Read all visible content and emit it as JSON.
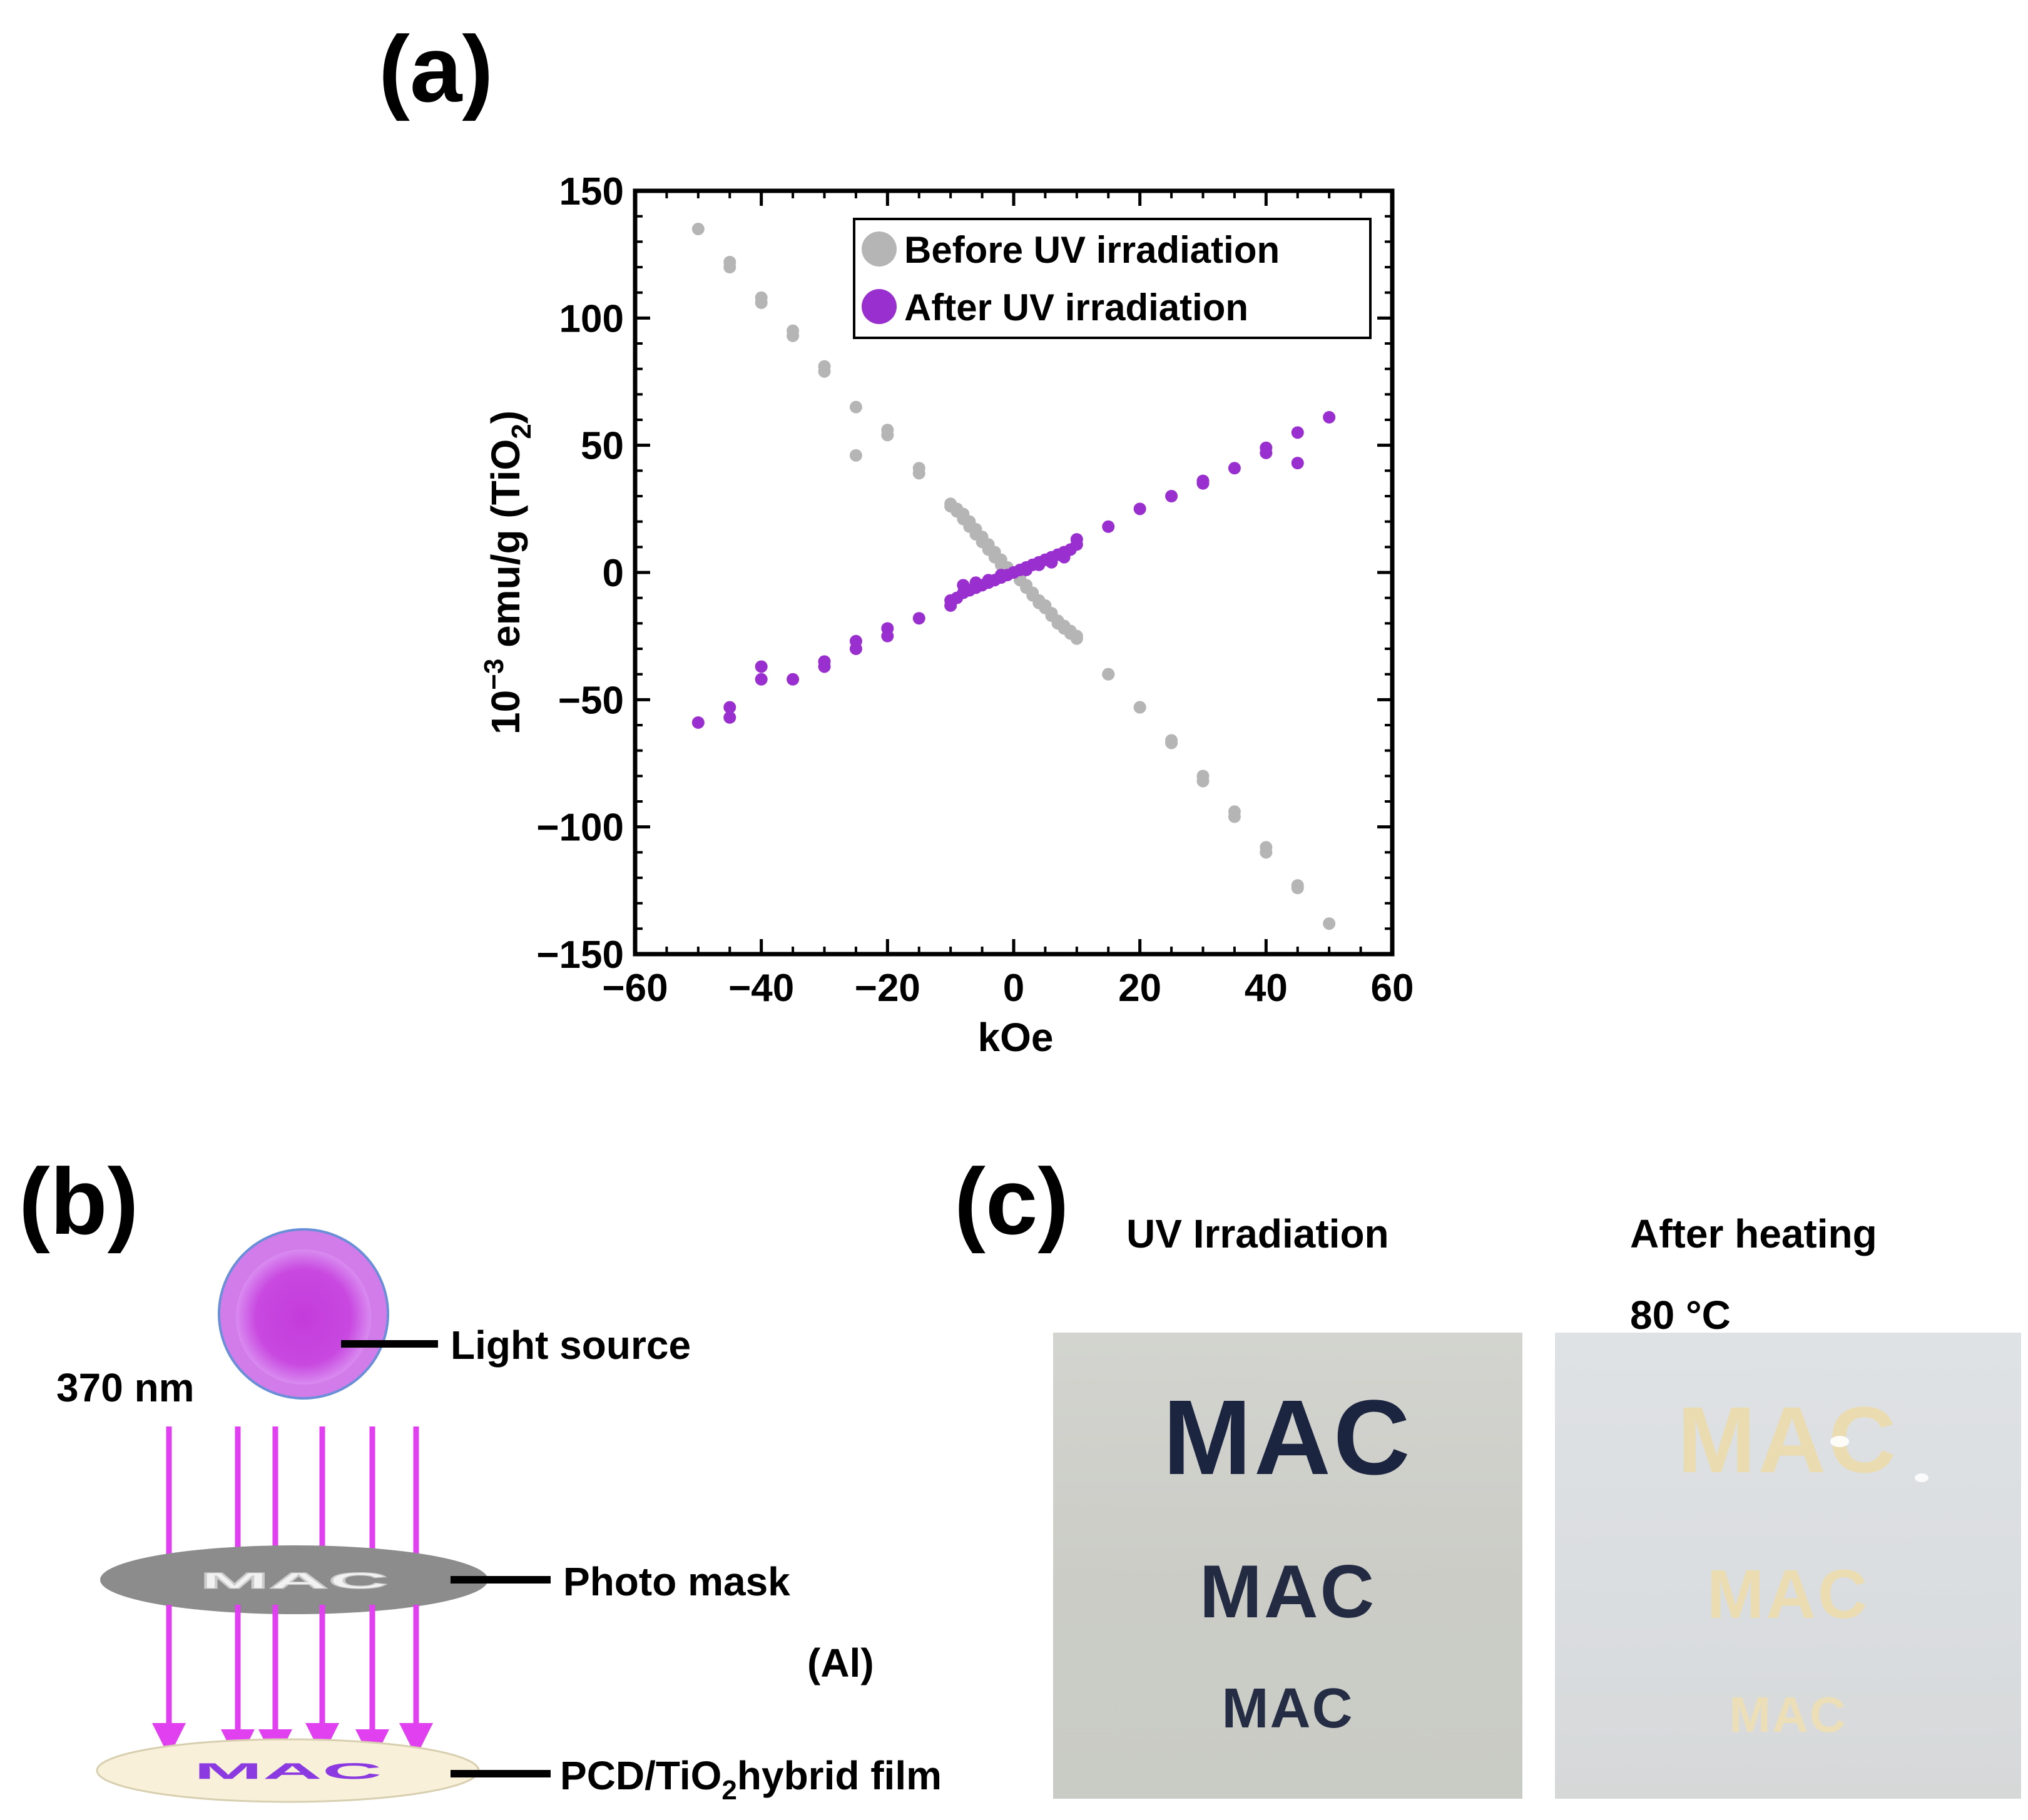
{
  "panel_a": {
    "label": "(a)",
    "chart_data": {
      "type": "scatter",
      "title": "",
      "xlabel": "kOe",
      "ylabel_main": "10",
      "ylabel_sup": "−3",
      "ylabel_rest": " emu/g (TiO",
      "ylabel_sub": "2",
      "ylabel_close": ")",
      "xlim": [
        -60,
        60
      ],
      "ylim": [
        -150,
        150
      ],
      "xticks": [
        -60,
        -40,
        -20,
        0,
        20,
        40,
        60
      ],
      "xtick_labels": [
        "−60",
        "−40",
        "−20",
        "0",
        "20",
        "40",
        "60"
      ],
      "yticks": [
        -150,
        -100,
        -50,
        0,
        50,
        100,
        150
      ],
      "ytick_labels": [
        "−150",
        "−100",
        "−50",
        "0",
        "50",
        "100",
        "150"
      ],
      "legend_position": "top-right",
      "series": [
        {
          "name": "Before UV irradiation",
          "color": "#b5b5b5",
          "x": [
            -50,
            -45,
            -45,
            -40,
            -40,
            -35,
            -35,
            -30,
            -30,
            -25,
            -25,
            -20,
            -20,
            -15,
            -15,
            -10,
            -9,
            -8,
            -7,
            -6,
            -5,
            -4,
            -3,
            -2,
            -1,
            0,
            1,
            2,
            3,
            4,
            5,
            6,
            7,
            8,
            9,
            10,
            -10,
            -9,
            -8,
            -7,
            -6,
            -5,
            -4,
            -3,
            -2,
            -1,
            1,
            2,
            3,
            4,
            5,
            6,
            7,
            8,
            9,
            10,
            15,
            15,
            20,
            20,
            25,
            25,
            30,
            30,
            35,
            35,
            40,
            40,
            45,
            45,
            50
          ],
          "y": [
            135,
            122,
            120,
            108,
            106,
            95,
            93,
            81,
            79,
            65,
            46,
            56,
            54,
            41,
            39,
            27,
            25,
            23,
            20,
            17,
            14,
            11,
            8,
            5,
            2,
            0,
            -3,
            -6,
            -9,
            -12,
            -14,
            -17,
            -20,
            -22,
            -24,
            -26,
            26,
            24,
            21,
            18,
            15,
            12,
            9,
            6,
            3,
            1,
            -2,
            -5,
            -8,
            -11,
            -13,
            -16,
            -19,
            -21,
            -23,
            -25,
            -40,
            -40,
            -53,
            -53,
            -66,
            -67,
            -80,
            -82,
            -94,
            -96,
            -108,
            -110,
            -123,
            -124,
            -138
          ]
        },
        {
          "name": "After UV irradiation",
          "color": "#9a2fd0",
          "x": [
            -50,
            -45,
            -45,
            -40,
            -40,
            -35,
            -30,
            -30,
            -25,
            -25,
            -20,
            -20,
            -15,
            -10,
            -10,
            -9,
            -8,
            -7,
            -6,
            -5,
            -4,
            -3,
            -2,
            -1,
            0,
            1,
            2,
            3,
            4,
            5,
            6,
            7,
            8,
            9,
            10,
            -8,
            -6,
            -4,
            -2,
            2,
            4,
            6,
            8,
            10,
            15,
            20,
            25,
            30,
            30,
            35,
            40,
            40,
            45,
            45,
            50
          ],
          "y": [
            -59,
            -57,
            -53,
            -42,
            -37,
            -42,
            -37,
            -35,
            -30,
            -27,
            -25,
            -22,
            -18,
            -13,
            -11,
            -10,
            -8,
            -7,
            -6,
            -5,
            -4,
            -3,
            -2,
            -1,
            0,
            1,
            2,
            3,
            4,
            5,
            6,
            7,
            8,
            9,
            11,
            -5,
            -4,
            -3,
            -1,
            1,
            3,
            4,
            6,
            13,
            18,
            25,
            30,
            36,
            35,
            41,
            47,
            49,
            43,
            55,
            61
          ]
        }
      ]
    }
  },
  "panel_b": {
    "label": "(b)",
    "wavelength": "370 nm",
    "light_source_label": "Light source",
    "photo_mask_label": "Photo mask",
    "mask_material": "(Al)",
    "mask_text": "MAC",
    "film_text": "MAC",
    "film_label_pre": "PCD/TiO",
    "film_label_sub": "2",
    "film_label_post": "hybrid film",
    "colors": {
      "arrow": "#e040f0",
      "source": "#c03ce0",
      "mask": "#8a8a8a",
      "film": "#f8f0d8",
      "film_text": "#8a3ae0"
    }
  },
  "panel_c": {
    "label": "(c)",
    "left_caption": "UV Irradiation",
    "right_caption_line1": "After heating",
    "right_caption_line2": "80 °C",
    "left_photo_texts": [
      "MAC",
      "MAC",
      "MAC"
    ],
    "right_photo_texts": [
      "MAC",
      "MAC",
      "MAC"
    ],
    "colors": {
      "left_bg": "#cfd1cc",
      "left_text": "#1c2540",
      "right_bg": "#dde0e3",
      "right_text": "#e8d6a8"
    }
  }
}
